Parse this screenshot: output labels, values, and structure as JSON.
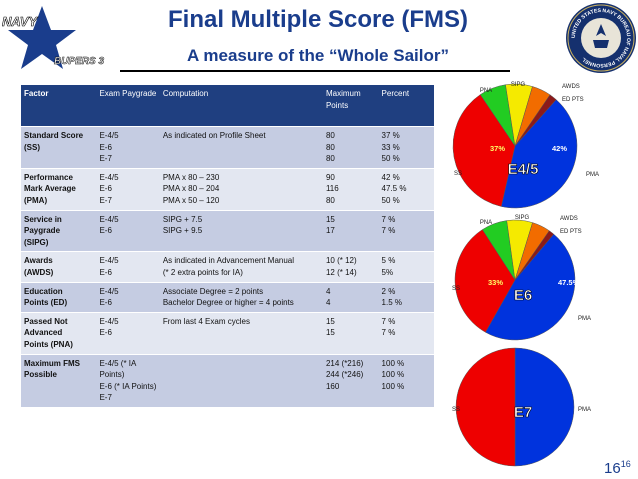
{
  "header": {
    "title": "Final Multiple Score (FMS)",
    "subtitle": "A measure of the “Whole Sailor”",
    "logo_text_top": "NAVY",
    "logo_text_bottom": "BUPERS 3",
    "seal_text": "UNITED STATES NAVY BUREAU OF NAVAL PERSONNEL",
    "seal_icon": "navy-seal-icon"
  },
  "table": {
    "headers": [
      "Factor",
      "Exam Paygrade",
      "Computation",
      "Maximum Points",
      "Percent"
    ],
    "rows": [
      {
        "factor": [
          "Standard Score",
          "(SS)"
        ],
        "paygrade": [
          "E-4/5",
          "E-6",
          "E-7"
        ],
        "computation": [
          "As indicated on Profile Sheet"
        ],
        "max_points": [
          "80",
          "80",
          "80"
        ],
        "percent": [
          "37 %",
          "33 %",
          "50 %"
        ]
      },
      {
        "factor": [
          "Performance",
          "Mark Average",
          "(PMA)"
        ],
        "paygrade": [
          "E-4/5",
          "E-6",
          "E-7"
        ],
        "computation": [
          "PMA x 80 – 230",
          "PMA x 80 – 204",
          "PMA x 50 – 120"
        ],
        "max_points": [
          "90",
          "116",
          "80"
        ],
        "percent": [
          "42 %",
          "47.5 %",
          "50 %"
        ]
      },
      {
        "factor": [
          "Service in",
          "Paygrade",
          "(SIPG)"
        ],
        "paygrade": [
          "E-4/5",
          "E-6"
        ],
        "computation": [
          "SIPG + 7.5",
          "SIPG + 9.5"
        ],
        "max_points": [
          "15",
          "17"
        ],
        "percent": [
          "7 %",
          "7 %"
        ]
      },
      {
        "factor": [
          "Awards",
          "(AWDS)"
        ],
        "paygrade": [
          "E-4/5",
          "E-6"
        ],
        "computation": [
          "As indicated in Advancement Manual",
          "(* 2 extra points for IA)"
        ],
        "max_points": [
          "10 (* 12)",
          "12 (* 14)"
        ],
        "percent": [
          "5 %",
          "5%"
        ]
      },
      {
        "factor": [
          "Education",
          "Points (ED)"
        ],
        "paygrade": [
          "E-4/5",
          "E-6"
        ],
        "computation": [
          "Associate Degree = 2 points",
          "Bachelor Degree or higher = 4 points"
        ],
        "max_points": [
          "4",
          "4"
        ],
        "percent": [
          "2 %",
          "1.5 %"
        ]
      },
      {
        "factor": [
          "Passed Not",
          "Advanced",
          "Points (PNA)"
        ],
        "paygrade": [
          "E-4/5",
          "E-6"
        ],
        "computation": [
          "From last 4 Exam cycles"
        ],
        "max_points": [
          "15",
          "15"
        ],
        "percent": [
          "7 %",
          "7 %"
        ]
      },
      {
        "factor": [
          "Maximum FMS",
          "Possible"
        ],
        "paygrade": [
          "E-4/5 (* IA Points)",
          "E-6 (* IA Points)",
          "E-7"
        ],
        "computation": [],
        "max_points": [
          "214 (*216)",
          "244 (*246)",
          "160"
        ],
        "percent": [
          "100 %",
          "100 %",
          "100 %"
        ]
      }
    ]
  },
  "chart_data": [
    {
      "type": "pie",
      "title": "E4/5",
      "slices": [
        {
          "label": "PMA",
          "value": 42,
          "color": "#0033dd",
          "pct_label": "42%"
        },
        {
          "label": "SS",
          "value": 37,
          "color": "#ee0000",
          "pct_label": "37%"
        },
        {
          "label": "PNA",
          "value": 7,
          "color": "#22cc22"
        },
        {
          "label": "SIPG",
          "value": 7,
          "color": "#f5ea00"
        },
        {
          "label": "AWDS",
          "value": 5,
          "color": "#f26c00"
        },
        {
          "label": "ED PTS",
          "value": 2,
          "color": "#8b1a1a"
        }
      ]
    },
    {
      "type": "pie",
      "title": "E6",
      "slices": [
        {
          "label": "PMA",
          "value": 47.5,
          "color": "#0033dd",
          "pct_label": "47.5%"
        },
        {
          "label": "SS",
          "value": 33,
          "color": "#ee0000",
          "pct_label": "33%"
        },
        {
          "label": "PNA",
          "value": 7,
          "color": "#22cc22"
        },
        {
          "label": "SIPG",
          "value": 7,
          "color": "#f5ea00"
        },
        {
          "label": "AWDS",
          "value": 5,
          "color": "#f26c00"
        },
        {
          "label": "ED PTS",
          "value": 1.5,
          "color": "#8b1a1a"
        }
      ]
    },
    {
      "type": "pie",
      "title": "E7",
      "slices": [
        {
          "label": "PMA",
          "value": 50,
          "color": "#0033dd"
        },
        {
          "label": "SS",
          "value": 50,
          "color": "#ee0000"
        }
      ]
    }
  ],
  "footer": {
    "page_number": "16",
    "page_superscript": "16"
  }
}
